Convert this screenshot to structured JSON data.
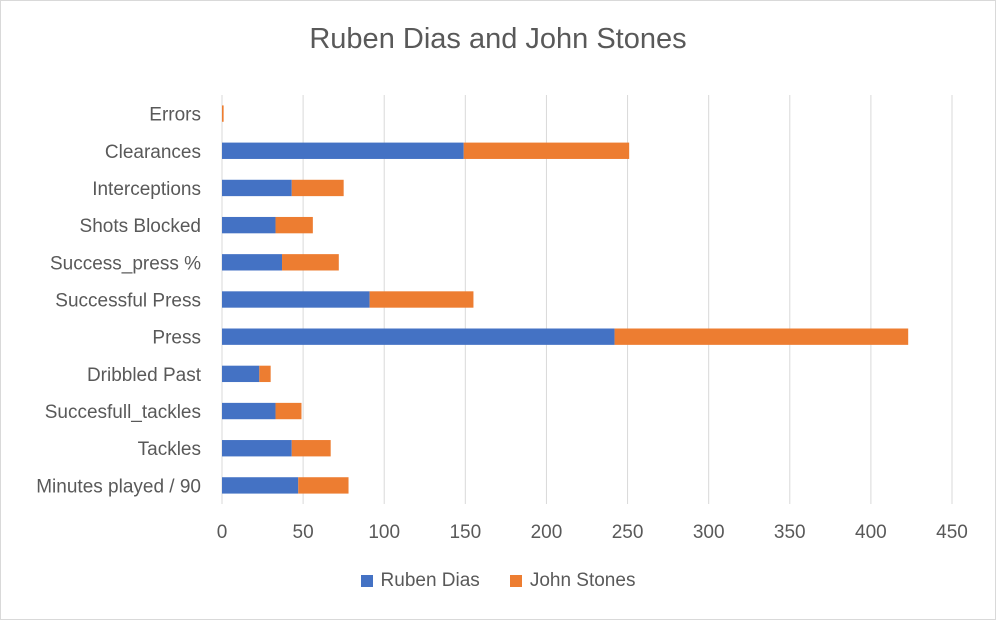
{
  "chart_data": {
    "type": "bar",
    "orientation": "horizontal",
    "stacked": true,
    "title": "Ruben Dias and John Stones",
    "categories": [
      "Minutes played / 90",
      "Tackles",
      "Succesfull_tackles",
      "Dribbled Past",
      "Press",
      "Successful Press",
      "Success_press %",
      "Shots Blocked",
      "Interceptions",
      "Clearances",
      "Errors"
    ],
    "series": [
      {
        "name": "Ruben Dias",
        "color": "#4472c4",
        "values": [
          47,
          43,
          33,
          23,
          242,
          91,
          37,
          33,
          43,
          149,
          0
        ]
      },
      {
        "name": "John Stones",
        "color": "#ed7d31",
        "values": [
          31,
          24,
          16,
          7,
          181,
          64,
          35,
          23,
          32,
          102,
          1
        ]
      }
    ],
    "xlim": [
      0,
      450
    ],
    "xticks": [
      0,
      50,
      100,
      150,
      200,
      250,
      300,
      350,
      400,
      450
    ],
    "grid": "vertical",
    "legend_position": "bottom"
  }
}
